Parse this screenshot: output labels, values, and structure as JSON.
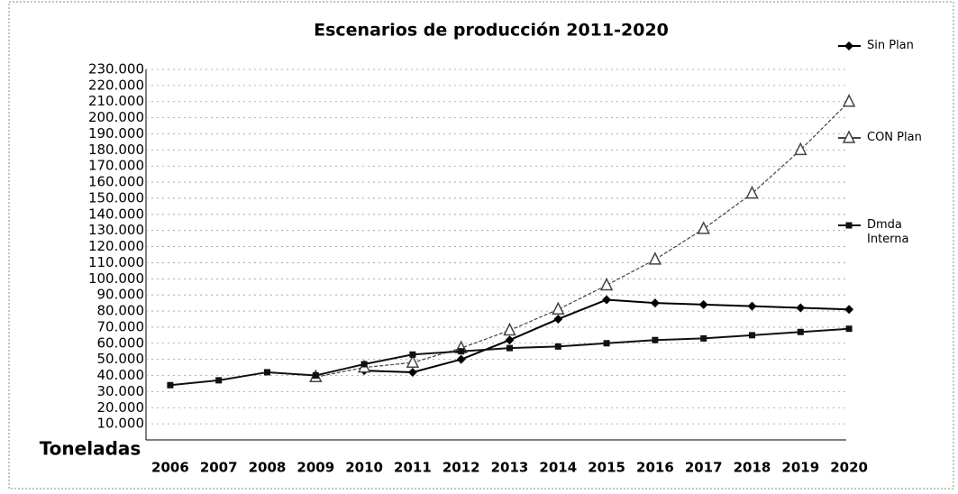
{
  "chart_data": {
    "type": "line",
    "title": "Escenarios de producción 2011-2020",
    "y_label": "Toneladas",
    "categories": [
      "2006",
      "2007",
      "2008",
      "2009",
      "2010",
      "2011",
      "2012",
      "2013",
      "2014",
      "2015",
      "2016",
      "2017",
      "2018",
      "2019",
      "2020"
    ],
    "series": [
      {
        "name": "Sin Plan",
        "color": "#000000",
        "marker": "diamond",
        "values": [
          null,
          null,
          null,
          null,
          43000,
          42000,
          50000,
          62000,
          75000,
          87000,
          85000,
          84000,
          83000,
          82000,
          81000
        ]
      },
      {
        "name": "CON Plan",
        "color": "#444444",
        "marker": "triangle",
        "values": [
          null,
          null,
          null,
          39000,
          45000,
          48000,
          57000,
          68000,
          81000,
          96000,
          112000,
          131000,
          153000,
          180000,
          210000
        ]
      },
      {
        "name": "Dmda Interna",
        "color": "#111111",
        "marker": "square",
        "values": [
          34000,
          37000,
          42000,
          40000,
          47000,
          53000,
          55000,
          57000,
          58000,
          60000,
          62000,
          63000,
          65000,
          67000,
          69000
        ]
      }
    ],
    "ylim": [
      0,
      230000
    ],
    "yticks": [
      {
        "value": 10000,
        "label": "10.000"
      },
      {
        "value": 20000,
        "label": "20.000"
      },
      {
        "value": 30000,
        "label": "30.000"
      },
      {
        "value": 40000,
        "label": "40.000"
      },
      {
        "value": 50000,
        "label": "50.000"
      },
      {
        "value": 60000,
        "label": "60.000"
      },
      {
        "value": 70000,
        "label": "70.000"
      },
      {
        "value": 80000,
        "label": "80.000"
      },
      {
        "value": 90000,
        "label": "90.000"
      },
      {
        "value": 100000,
        "label": "100.000"
      },
      {
        "value": 110000,
        "label": "110.000"
      },
      {
        "value": 120000,
        "label": "120.000"
      },
      {
        "value": 130000,
        "label": "130.000"
      },
      {
        "value": 140000,
        "label": "140.000"
      },
      {
        "value": 150000,
        "label": "150.000"
      },
      {
        "value": 160000,
        "label": "160.000"
      },
      {
        "value": 170000,
        "label": "170.000"
      },
      {
        "value": 180000,
        "label": "180.000"
      },
      {
        "value": 190000,
        "label": "190.000"
      },
      {
        "value": 200000,
        "label": "200.000"
      },
      {
        "value": 210000,
        "label": "210.000"
      },
      {
        "value": 220000,
        "label": "220.000"
      },
      {
        "value": 230000,
        "label": "230.000"
      }
    ],
    "grid": true
  }
}
